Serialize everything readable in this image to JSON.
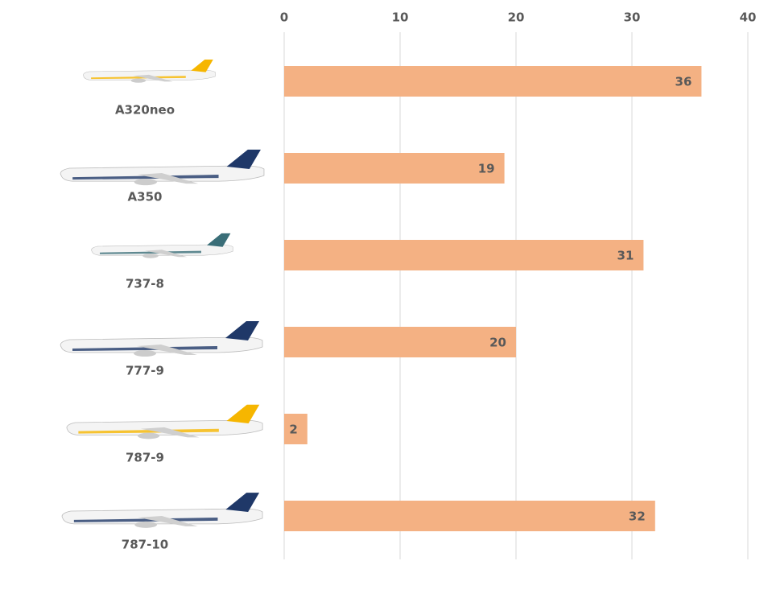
{
  "chart_data": {
    "type": "bar",
    "orientation": "horizontal",
    "categories": [
      "A320neo",
      "A350",
      "737-8",
      "777-9",
      "787-9",
      "787-10"
    ],
    "values": [
      36,
      19,
      31,
      20,
      2,
      32
    ],
    "color": "#f4b183",
    "xlim": [
      0,
      40
    ],
    "xticks": [
      0,
      10,
      20,
      30,
      40
    ],
    "grid": true
  }
}
